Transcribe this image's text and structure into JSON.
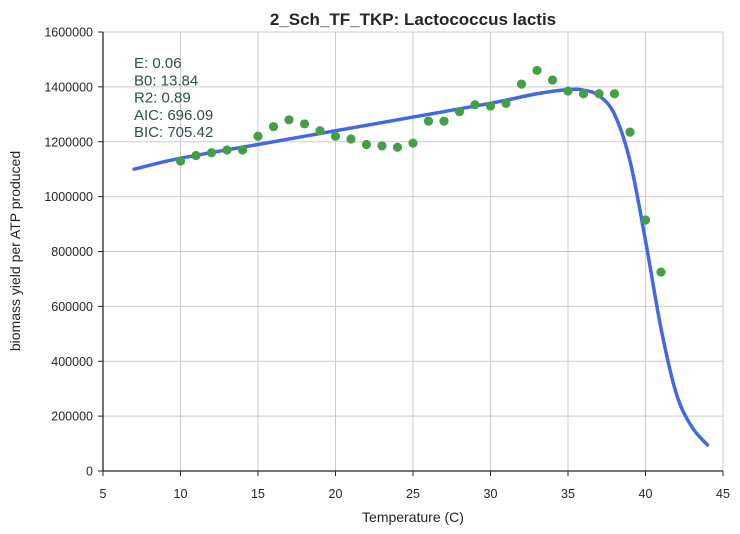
{
  "chart_data": {
    "type": "scatter",
    "title": "2_Sch_TF_TKP: Lactococcus lactis",
    "xlabel": "Temperature (C)",
    "ylabel": "biomass yield per ATP produced",
    "xlim": [
      5,
      45
    ],
    "ylim": [
      0,
      1600000
    ],
    "xticks": [
      "5",
      "10",
      "15",
      "20",
      "25",
      "30",
      "35",
      "40",
      "45"
    ],
    "yticks": [
      "0",
      "200000",
      "400000",
      "600000",
      "800000",
      "1000000",
      "1200000",
      "1400000",
      "1600000"
    ],
    "xtick_values": [
      5,
      10,
      15,
      20,
      25,
      30,
      35,
      40,
      45
    ],
    "ytick_values": [
      0,
      200000,
      400000,
      600000,
      800000,
      1000000,
      1200000,
      1400000,
      1600000
    ],
    "grid": true,
    "annotations": [
      "E:  0.06",
      "B0:  13.84",
      "R2:  0.89",
      "AIC: 696.09",
      "BIC: 705.42"
    ],
    "series": [
      {
        "type": "scatter",
        "color": "#43a047",
        "x": [
          10,
          11,
          12,
          13,
          14,
          15,
          16,
          17,
          18,
          19,
          20,
          21,
          22,
          23,
          24,
          25,
          26,
          27,
          28,
          29,
          30,
          31,
          32,
          33,
          34,
          35,
          36,
          37,
          38,
          39,
          40,
          41
        ],
        "y": [
          1130000,
          1150000,
          1160000,
          1170000,
          1170000,
          1220000,
          1255000,
          1280000,
          1265000,
          1240000,
          1220000,
          1210000,
          1190000,
          1185000,
          1180000,
          1195000,
          1275000,
          1275000,
          1310000,
          1335000,
          1330000,
          1340000,
          1410000,
          1460000,
          1425000,
          1385000,
          1375000,
          1375000,
          1375000,
          1235000,
          915000,
          725000
        ]
      },
      {
        "type": "line",
        "color": "#4169e1",
        "x": [
          7,
          10,
          15,
          20,
          25,
          30,
          33,
          35,
          36,
          37,
          38,
          39,
          40,
          41,
          42,
          43,
          44
        ],
        "y": [
          1100000,
          1140000,
          1190000,
          1240000,
          1290000,
          1340000,
          1375000,
          1390000,
          1388000,
          1368000,
          1300000,
          1130000,
          840000,
          520000,
          280000,
          160000,
          95000
        ]
      }
    ]
  }
}
